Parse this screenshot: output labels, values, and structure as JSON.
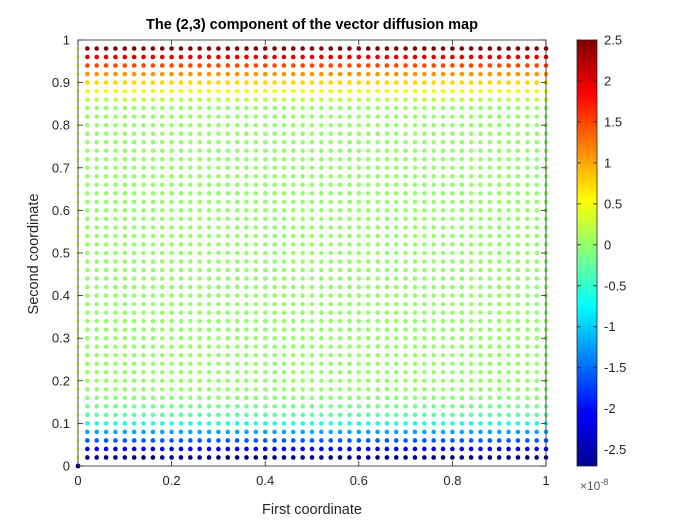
{
  "chart_data": {
    "type": "scatter",
    "title": "The (2,3) component of the vector diffusion map",
    "xlabel": "First coordinate",
    "ylabel": "Second coordinate",
    "xlim": [
      0,
      1
    ],
    "ylim": [
      0,
      1
    ],
    "x_ticks": [
      "0",
      "0.2",
      "0.4",
      "0.6",
      "0.8",
      "1"
    ],
    "y_ticks": [
      "0",
      "0.1",
      "0.2",
      "0.3",
      "0.4",
      "0.5",
      "0.6",
      "0.7",
      "0.8",
      "0.9",
      "1"
    ],
    "grid": false,
    "colormap": "jet",
    "color_range": [
      -2.7,
      2.5
    ],
    "colorbar": {
      "ticks": [
        "-2.5",
        "-2",
        "-1.5",
        "-1",
        "-0.5",
        "0",
        "0.5",
        "1",
        "1.5",
        "2",
        "2.5"
      ],
      "exponent_prefix": "×10",
      "exponent_power": "-8"
    },
    "point_grid": {
      "nx": 51,
      "ny": 49,
      "y_start": 0.02,
      "y_step": 0.02
    },
    "color_value_by_y": [
      [
        0.02,
        -2.7
      ],
      [
        0.04,
        -2.2
      ],
      [
        0.06,
        -1.6
      ],
      [
        0.08,
        -1.2
      ],
      [
        0.1,
        -0.6
      ],
      [
        0.12,
        -0.3
      ],
      [
        0.14,
        -0.15
      ],
      [
        0.16,
        -0.05
      ],
      [
        0.18,
        0.0
      ],
      [
        0.84,
        0.0
      ],
      [
        0.86,
        0.2
      ],
      [
        0.88,
        0.45
      ],
      [
        0.9,
        0.75
      ],
      [
        0.92,
        1.1
      ],
      [
        0.94,
        1.5
      ],
      [
        0.96,
        2.0
      ],
      [
        0.98,
        2.5
      ]
    ],
    "left_edge_column": {
      "x": 0,
      "color_value": 0.5,
      "marker_at_origin_color_value": -2.7
    }
  }
}
